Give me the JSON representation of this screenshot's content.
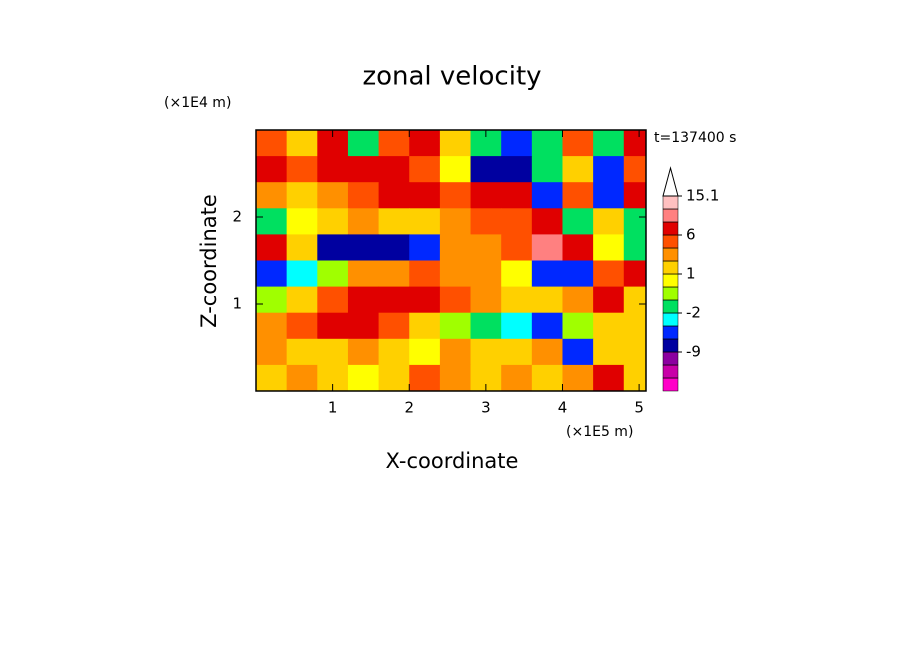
{
  "chart_data": {
    "type": "contourf",
    "title": "zonal velocity",
    "x_label": "X-coordinate",
    "y_label": "Z-coordinate",
    "x_unit": "(×1E5 m)",
    "y_unit": "(×1E4 m)",
    "time_label": "t=137400 s",
    "xlim": [
      0,
      5.09
    ],
    "ylim": [
      0,
      3
    ],
    "xticks": [
      1,
      2,
      3,
      4,
      5
    ],
    "yticks": [
      1,
      2
    ],
    "x": [
      0.2,
      0.6,
      1.0,
      1.4,
      1.8,
      2.2,
      2.6,
      3.0,
      3.4,
      3.8,
      4.2,
      4.6,
      5.0
    ],
    "y": [
      2.85,
      2.55,
      2.25,
      1.95,
      1.65,
      1.35,
      1.05,
      0.75,
      0.45,
      0.15
    ],
    "z": [
      [
        4,
        1,
        6,
        -2,
        4,
        6,
        1,
        -2,
        -6,
        -2,
        4,
        -2,
        6
      ],
      [
        6,
        4,
        6,
        8,
        8,
        4,
        0,
        -9,
        -9,
        -2,
        1,
        -6,
        4
      ],
      [
        2,
        1,
        2,
        4,
        6,
        6,
        4,
        6,
        6,
        -6,
        4,
        -6,
        6
      ],
      [
        -2,
        0,
        1,
        2,
        1,
        1,
        2,
        4,
        4,
        6,
        -2,
        1,
        -2
      ],
      [
        6,
        1,
        -9,
        -9,
        -9,
        -6,
        2,
        2,
        4,
        9,
        8,
        0,
        -2
      ],
      [
        -6,
        -4,
        -1,
        2,
        2,
        4,
        2,
        2,
        0,
        -6,
        -6,
        4,
        6
      ],
      [
        -1,
        1,
        4,
        6,
        6,
        6,
        4,
        2,
        1,
        1,
        2,
        6,
        1
      ],
      [
        2,
        4,
        6,
        6,
        4,
        1,
        -1,
        -2,
        -4,
        -6,
        -1,
        1,
        1
      ],
      [
        2,
        1,
        1,
        2,
        1,
        0,
        2,
        1,
        1,
        2,
        -6,
        1,
        1
      ],
      [
        1,
        2,
        1,
        0,
        1,
        4,
        2,
        1,
        2,
        1,
        2,
        6,
        1
      ]
    ],
    "levels": [
      -15,
      -12,
      -9,
      -6,
      -4,
      -2,
      -1,
      0,
      1,
      2,
      4,
      6,
      9,
      12,
      15.1
    ],
    "colors": [
      "#ff00c8",
      "#c800a8",
      "#8c00a0",
      "#0000a0",
      "#0028ff",
      "#00ffff",
      "#00e060",
      "#a0ff00",
      "#ffff00",
      "#ffd000",
      "#ff9000",
      "#ff5000",
      "#e00000",
      "#ff8080",
      "#ffc0c0",
      "#ffffff"
    ],
    "cbar_ticks": [
      15.1,
      6,
      1,
      -2,
      -9
    ]
  }
}
